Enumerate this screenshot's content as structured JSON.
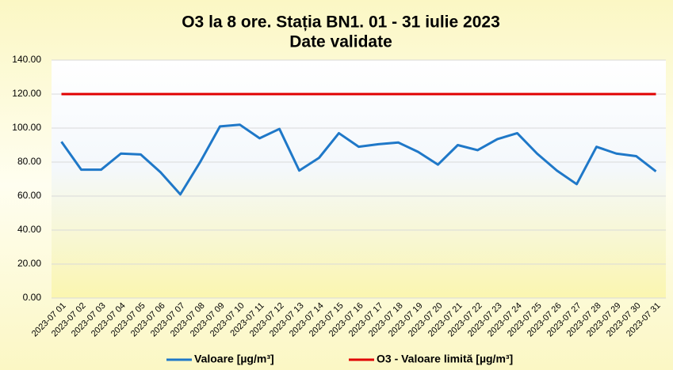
{
  "chart_data": {
    "type": "line",
    "title": "O3 la 8 ore. Stația BN1. 01 - 31 iulie 2023",
    "subtitle": "Date validate",
    "categories": [
      "2023-07 01",
      "2023-07 02",
      "2023-07 03",
      "2023-07 04",
      "2023-07 05",
      "2023-07 06",
      "2023-07 07",
      "2023-07 08",
      "2023-07 09",
      "2023-07 10",
      "2023-07 11",
      "2023-07 12",
      "2023-07 13",
      "2023-07 14",
      "2023-07 15",
      "2023-07 16",
      "2023-07 17",
      "2023-07 18",
      "2023-07 19",
      "2023-07 20",
      "2023-07 21",
      "2023-07 22",
      "2023-07 23",
      "2023-07 24",
      "2023-07 25",
      "2023-07 26",
      "2023-07 27",
      "2023-07 28",
      "2023-07 29",
      "2023-07 30",
      "2023-07 31"
    ],
    "series": [
      {
        "name": "Valoare [µg/m³]",
        "color": "#1f78c8",
        "values": [
          92,
          75.5,
          75.5,
          85,
          84.5,
          74,
          61,
          80,
          101,
          102,
          94,
          99.5,
          75,
          82.5,
          97,
          89,
          90.5,
          91.5,
          86,
          78.5,
          90,
          87,
          93.5,
          97,
          85,
          75,
          67,
          89,
          85,
          83.5,
          74.5
        ]
      },
      {
        "name": "O3 - Valoare limită [µg/m³]",
        "color": "#e00000",
        "values": [
          120,
          120,
          120,
          120,
          120,
          120,
          120,
          120,
          120,
          120,
          120,
          120,
          120,
          120,
          120,
          120,
          120,
          120,
          120,
          120,
          120,
          120,
          120,
          120,
          120,
          120,
          120,
          120,
          120,
          120,
          120
        ]
      }
    ],
    "ylim": [
      0,
      140
    ],
    "yticks": [
      {
        "value": 0,
        "label": "0.00"
      },
      {
        "value": 20,
        "label": "20.00"
      },
      {
        "value": 40,
        "label": "40.00"
      },
      {
        "value": 60,
        "label": "60.00"
      },
      {
        "value": 80,
        "label": "80.00"
      },
      {
        "value": 100,
        "label": "100.00"
      },
      {
        "value": 120,
        "label": "120.00"
      },
      {
        "value": 140,
        "label": "140.00"
      }
    ],
    "grid": true,
    "legend": "bottom"
  }
}
